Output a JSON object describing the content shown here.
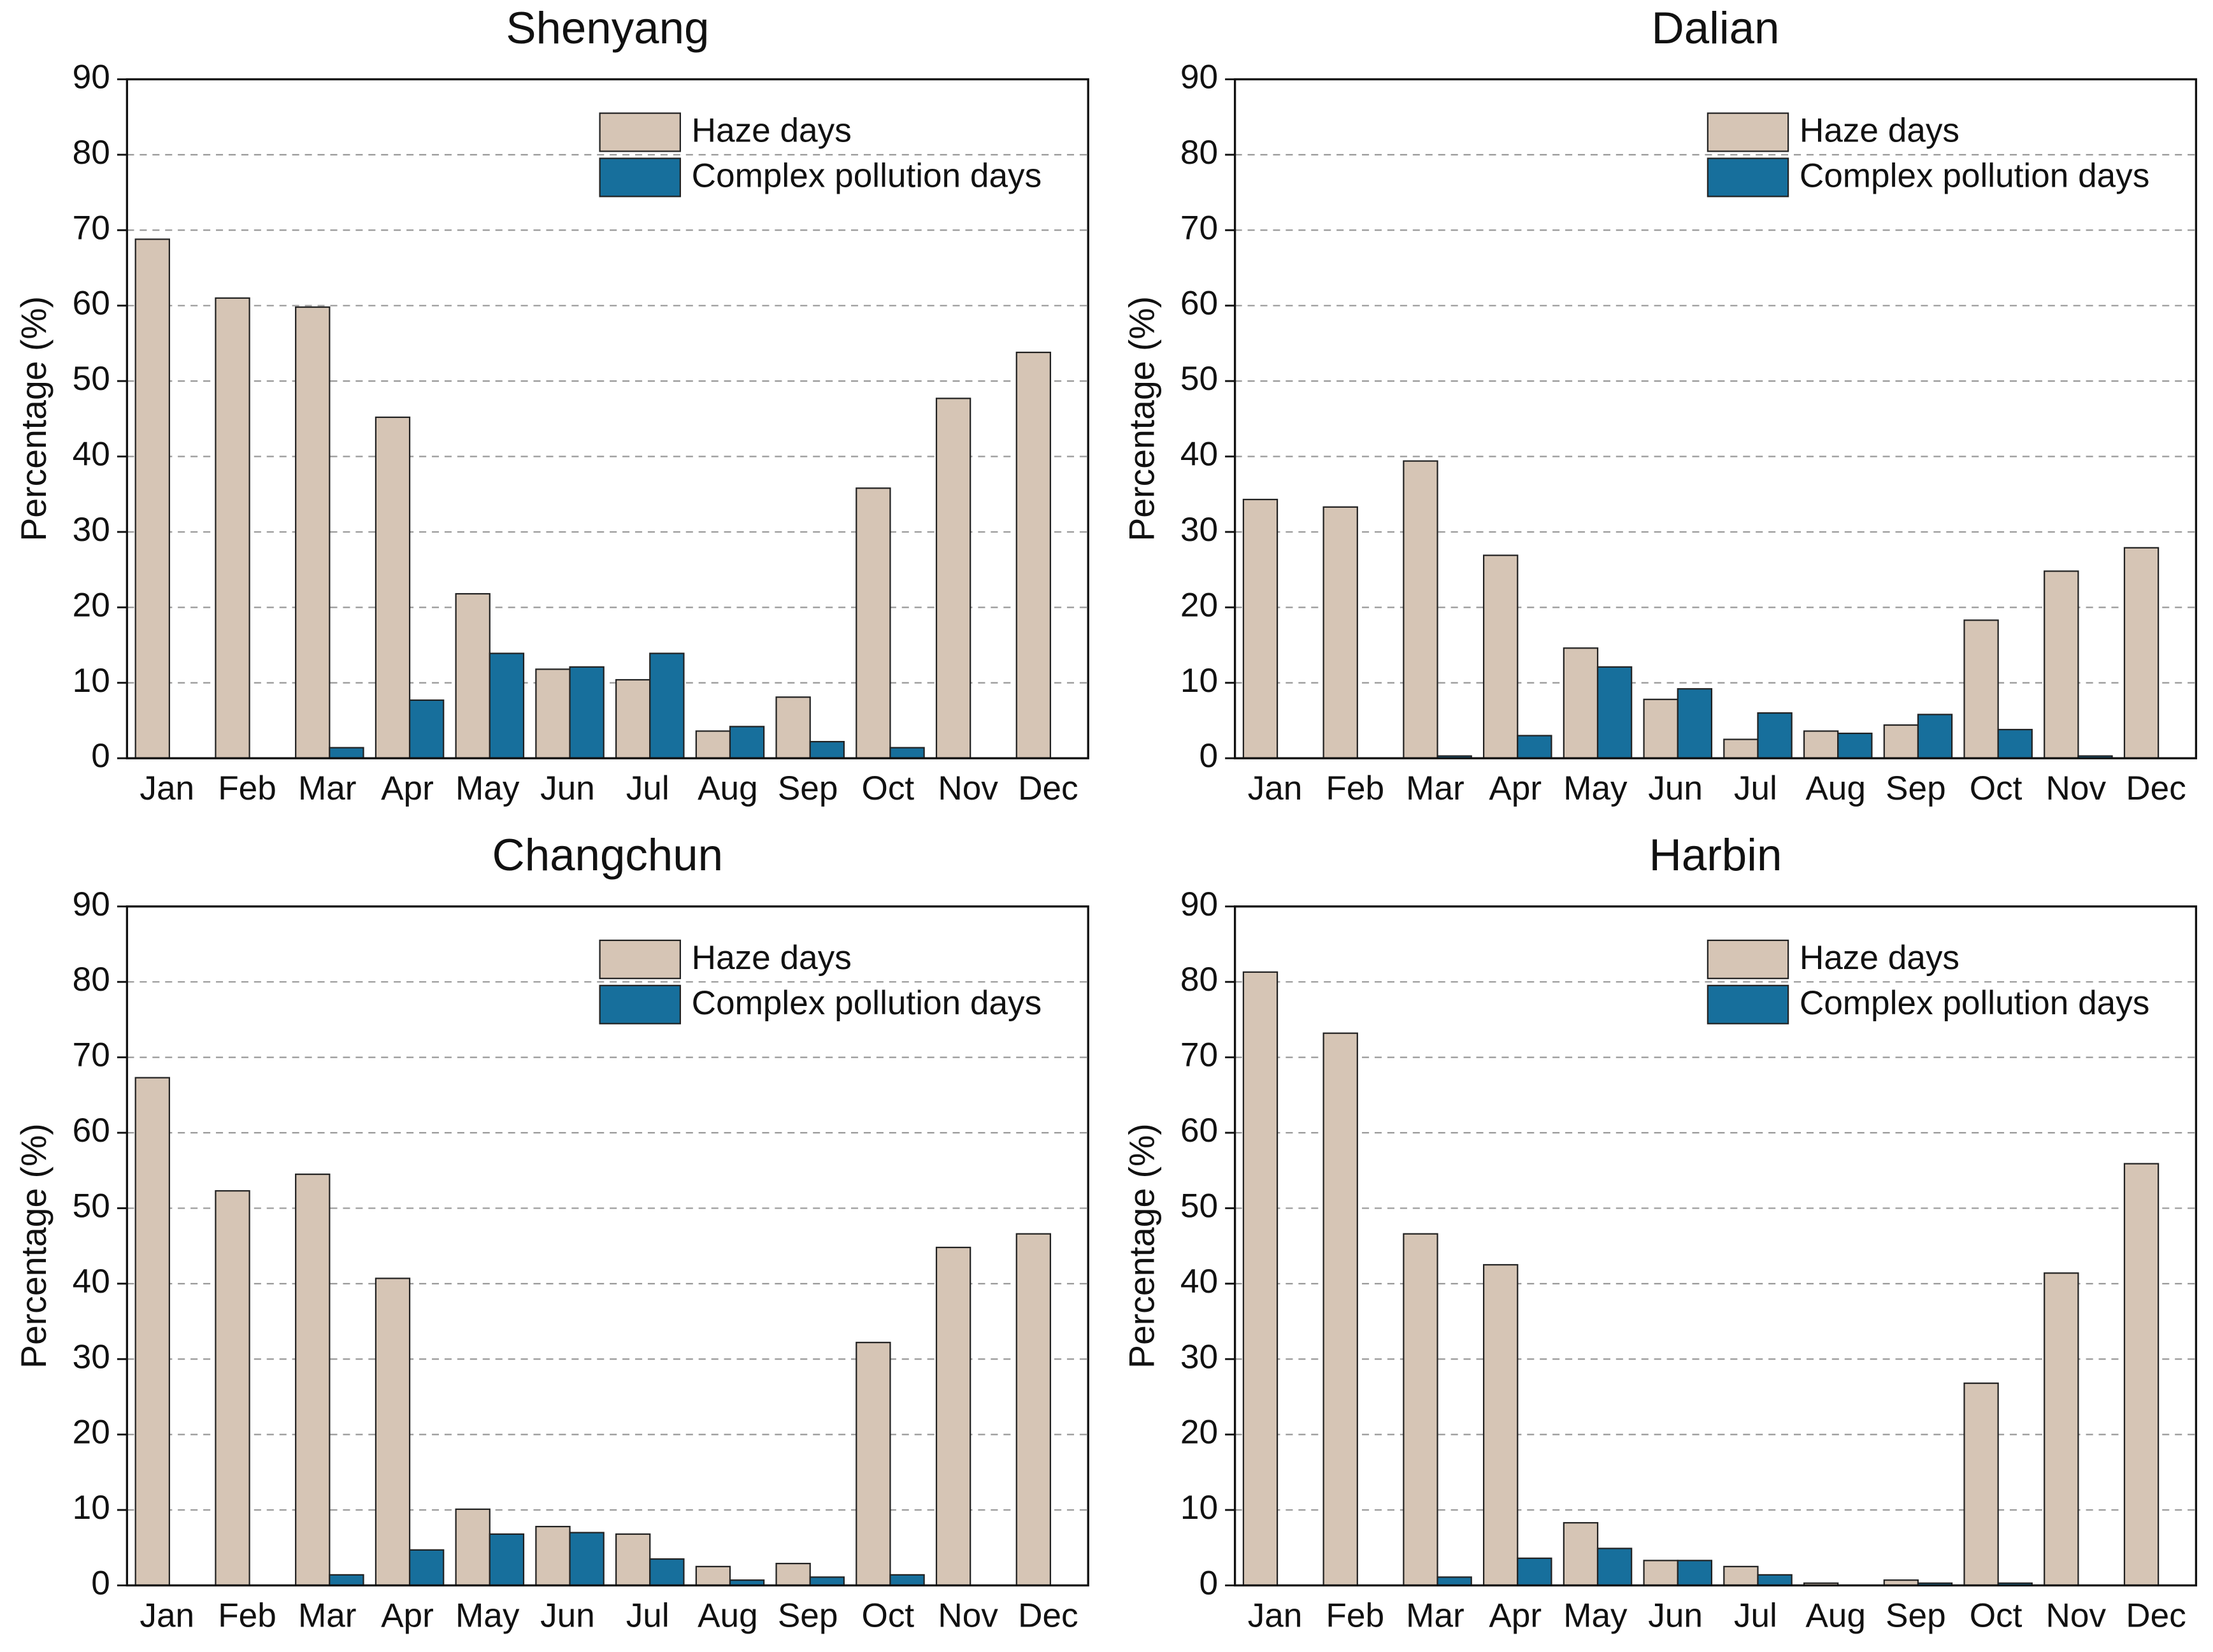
{
  "chart_data": [
    {
      "type": "bar",
      "title": "Shenyang",
      "y_label": "Percentage (%)",
      "categories": [
        "Jan",
        "Feb",
        "Mar",
        "Apr",
        "May",
        "Jun",
        "Jul",
        "Aug",
        "Sep",
        "Oct",
        "Nov",
        "Dec"
      ],
      "series": [
        {
          "name": "Haze days",
          "color": "#d6c5b5",
          "values": [
            68.8,
            61,
            59.8,
            45.2,
            21.8,
            11.8,
            10.4,
            3.6,
            8.1,
            35.8,
            47.7,
            53.8
          ]
        },
        {
          "name": "Complex pollution days",
          "color": "#176f9c",
          "values": [
            0,
            0,
            1.4,
            7.7,
            13.9,
            12.1,
            13.9,
            4.2,
            2.2,
            1.4,
            0,
            0
          ]
        }
      ],
      "ylim": [
        0,
        90
      ],
      "yticks": [
        0,
        10,
        20,
        30,
        40,
        50,
        60,
        70,
        80,
        90
      ],
      "grid": true,
      "legend": "upper right"
    },
    {
      "type": "bar",
      "title": "Dalian",
      "y_label": "Percentage (%)",
      "categories": [
        "Jan",
        "Feb",
        "Mar",
        "Apr",
        "May",
        "Jun",
        "Jul",
        "Aug",
        "Sep",
        "Oct",
        "Nov",
        "Dec"
      ],
      "series": [
        {
          "name": "Haze days",
          "color": "#d6c5b5",
          "values": [
            34.3,
            33.3,
            39.4,
            26.9,
            14.6,
            7.8,
            2.5,
            3.6,
            4.4,
            18.3,
            24.8,
            27.9
          ]
        },
        {
          "name": "Complex pollution days",
          "color": "#176f9c",
          "values": [
            0,
            0,
            0.3,
            3.0,
            12.1,
            9.2,
            6.0,
            3.3,
            5.8,
            3.8,
            0.3,
            0
          ]
        }
      ],
      "ylim": [
        0,
        90
      ],
      "yticks": [
        0,
        10,
        20,
        30,
        40,
        50,
        60,
        70,
        80,
        90
      ],
      "grid": true,
      "legend": "upper right"
    },
    {
      "type": "bar",
      "title": "Changchun",
      "y_label": "Percentage (%)",
      "categories": [
        "Jan",
        "Feb",
        "Mar",
        "Apr",
        "May",
        "Jun",
        "Jul",
        "Aug",
        "Sep",
        "Oct",
        "Nov",
        "Dec"
      ],
      "series": [
        {
          "name": "Haze days",
          "color": "#d6c5b5",
          "values": [
            67.3,
            52.3,
            54.5,
            40.7,
            10.1,
            7.8,
            6.8,
            2.5,
            2.9,
            32.2,
            44.8,
            46.6
          ]
        },
        {
          "name": "Complex pollution days",
          "color": "#176f9c",
          "values": [
            0,
            0,
            1.4,
            4.7,
            6.8,
            7.0,
            3.5,
            0.7,
            1.1,
            1.4,
            0,
            0
          ]
        }
      ],
      "ylim": [
        0,
        90
      ],
      "yticks": [
        0,
        10,
        20,
        30,
        40,
        50,
        60,
        70,
        80,
        90
      ],
      "grid": true,
      "legend": "upper right"
    },
    {
      "type": "bar",
      "title": "Harbin",
      "y_label": "Percentage (%)",
      "categories": [
        "Jan",
        "Feb",
        "Mar",
        "Apr",
        "May",
        "Jun",
        "Jul",
        "Aug",
        "Sep",
        "Oct",
        "Nov",
        "Dec"
      ],
      "series": [
        {
          "name": "Haze days",
          "color": "#d6c5b5",
          "values": [
            81.3,
            73.2,
            46.6,
            42.5,
            8.3,
            3.3,
            2.5,
            0.3,
            0.7,
            26.8,
            41.4,
            55.9
          ]
        },
        {
          "name": "Complex pollution days",
          "color": "#176f9c",
          "values": [
            0,
            0,
            1.1,
            3.6,
            4.9,
            3.3,
            1.4,
            0,
            0.3,
            0.3,
            0,
            0
          ]
        }
      ],
      "ylim": [
        0,
        90
      ],
      "yticks": [
        0,
        10,
        20,
        30,
        40,
        50,
        60,
        70,
        80,
        90
      ],
      "grid": true,
      "legend": "upper right"
    }
  ]
}
